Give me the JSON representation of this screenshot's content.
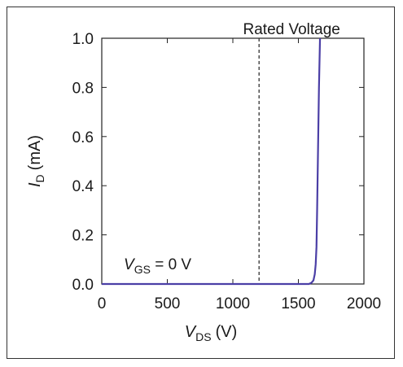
{
  "chart_data": {
    "type": "line",
    "title": "",
    "xlabel": {
      "var": "V",
      "sub": "DS",
      "unit": "(V)"
    },
    "ylabel": {
      "var": "I",
      "sub": "D",
      "unit": "(mA)"
    },
    "xlim": [
      0,
      2000
    ],
    "ylim": [
      0,
      1.0
    ],
    "xticks": [
      0,
      500,
      1000,
      1500,
      2000
    ],
    "yticks": [
      0.0,
      0.2,
      0.4,
      0.6,
      0.8,
      1.0
    ],
    "xtick_labels": [
      "0",
      "500",
      "1000",
      "1500",
      "2000"
    ],
    "ytick_labels": [
      "0.0",
      "0.2",
      "0.4",
      "0.6",
      "0.8",
      "1.0"
    ],
    "grid": false,
    "series": [
      {
        "color": "#4b3fa6",
        "x": [
          0,
          1580,
          1600,
          1615,
          1625,
          1632,
          1638,
          1643,
          1650,
          1657,
          1665
        ],
        "y": [
          0.0,
          0.0,
          0.005,
          0.015,
          0.04,
          0.08,
          0.15,
          0.3,
          0.55,
          0.8,
          1.0
        ]
      }
    ],
    "reference_line": {
      "x": 1200,
      "style": "dashed",
      "label": "Rated Voltage"
    },
    "annotation": {
      "var": "V",
      "sub": "GS",
      "text": " = 0 V"
    }
  }
}
